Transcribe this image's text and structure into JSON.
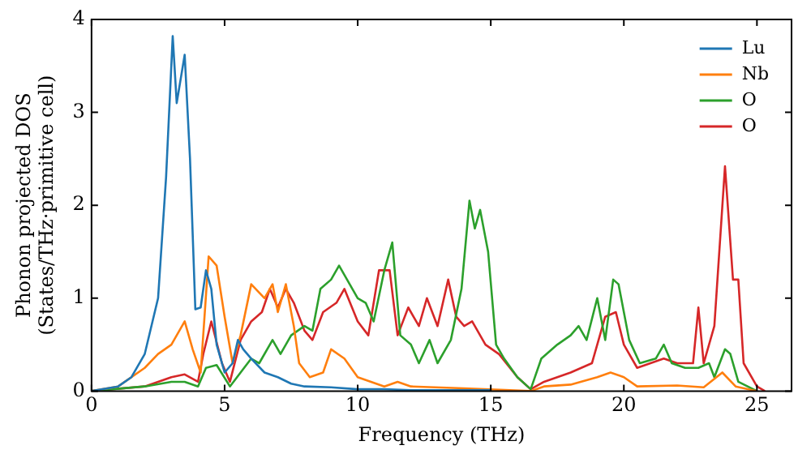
{
  "chart_data": {
    "type": "line",
    "xlabel": "Frequency (THz)",
    "ylabel": "Phonon projected DOS\n(States/THz·primitive cell)",
    "xlim": [
      0,
      26.3
    ],
    "xticks": [
      0,
      5,
      10,
      15,
      20,
      25
    ],
    "ylim": [
      0,
      4
    ],
    "yticks": [
      0,
      1,
      2,
      3,
      4
    ],
    "grid": false,
    "legend": "top right",
    "marker": "none",
    "line_style": "solid",
    "series": [
      {
        "name": "Lu",
        "color": "#1f77b4",
        "x": [
          0,
          1,
          1.5,
          2,
          2.5,
          2.8,
          3.05,
          3.2,
          3.5,
          3.7,
          3.9,
          4.1,
          4.3,
          4.5,
          4.7,
          5.0,
          5.3,
          5.5,
          5.7,
          6,
          6.5,
          7,
          7.5,
          8,
          9,
          10,
          11,
          12,
          13,
          15
        ],
        "values": [
          0,
          0.05,
          0.15,
          0.4,
          1.0,
          2.3,
          3.82,
          3.1,
          3.62,
          2.5,
          0.88,
          0.9,
          1.3,
          1.1,
          0.5,
          0.2,
          0.3,
          0.55,
          0.45,
          0.35,
          0.2,
          0.15,
          0.08,
          0.05,
          0.04,
          0.02,
          0.02,
          0.01,
          0.01,
          0.01
        ]
      },
      {
        "name": "Nb",
        "color": "#ff7f0e",
        "x": [
          0,
          1,
          2,
          2.5,
          3,
          3.5,
          3.8,
          4.1,
          4.4,
          4.7,
          5.0,
          5.3,
          5.6,
          6.0,
          6.5,
          6.8,
          7.0,
          7.3,
          7.6,
          7.8,
          8.2,
          8.7,
          9.0,
          9.5,
          10,
          10.5,
          11,
          11.5,
          12,
          14,
          16.5,
          17,
          18,
          19,
          19.5,
          20,
          20.5,
          22,
          23,
          23.7,
          24.2,
          25
        ],
        "values": [
          0,
          0.05,
          0.25,
          0.4,
          0.5,
          0.75,
          0.45,
          0.2,
          1.45,
          1.35,
          0.8,
          0.3,
          0.6,
          1.15,
          1.0,
          1.15,
          0.85,
          1.15,
          0.7,
          0.3,
          0.15,
          0.2,
          0.45,
          0.35,
          0.15,
          0.1,
          0.05,
          0.1,
          0.05,
          0.03,
          0,
          0.05,
          0.07,
          0.15,
          0.2,
          0.15,
          0.05,
          0.06,
          0.04,
          0.2,
          0.05,
          0
        ]
      },
      {
        "name": "O",
        "color": "#2ca02c",
        "x": [
          0,
          2,
          3,
          3.5,
          4.0,
          4.3,
          4.7,
          5.2,
          5.6,
          6,
          6.3,
          6.8,
          7.1,
          7.5,
          8,
          8.3,
          8.6,
          9,
          9.3,
          9.7,
          10.0,
          10.3,
          10.6,
          11.0,
          11.3,
          11.6,
          12,
          12.3,
          12.7,
          13.0,
          13.5,
          13.9,
          14.2,
          14.4,
          14.6,
          14.9,
          15.2,
          15.5,
          16,
          16.5,
          16.9,
          17.5,
          18,
          18.3,
          18.6,
          19.0,
          19.3,
          19.6,
          19.8,
          20.2,
          20.6,
          21.2,
          21.5,
          21.8,
          22.3,
          22.8,
          23.2,
          23.4,
          23.8,
          24.0,
          24.3,
          25
        ],
        "values": [
          0,
          0.05,
          0.1,
          0.1,
          0.05,
          0.25,
          0.28,
          0.05,
          0.2,
          0.35,
          0.3,
          0.55,
          0.4,
          0.6,
          0.7,
          0.65,
          1.1,
          1.2,
          1.35,
          1.15,
          1.0,
          0.95,
          0.75,
          1.3,
          1.6,
          0.6,
          0.5,
          0.3,
          0.55,
          0.3,
          0.55,
          1.1,
          2.05,
          1.75,
          1.95,
          1.5,
          0.5,
          0.35,
          0.15,
          0.02,
          0.35,
          0.5,
          0.6,
          0.7,
          0.55,
          1.0,
          0.55,
          1.2,
          1.15,
          0.55,
          0.3,
          0.35,
          0.5,
          0.3,
          0.25,
          0.25,
          0.3,
          0.15,
          0.45,
          0.4,
          0.1,
          0
        ]
      },
      {
        "name": "O",
        "color": "#d62728",
        "x": [
          0,
          2,
          3,
          3.5,
          4.0,
          4.2,
          4.5,
          4.9,
          5.2,
          5.6,
          6,
          6.4,
          6.7,
          7.0,
          7.3,
          7.6,
          8,
          8.3,
          8.7,
          9.2,
          9.5,
          10,
          10.4,
          10.8,
          11.2,
          11.5,
          11.9,
          12.3,
          12.6,
          13.0,
          13.4,
          13.7,
          14.0,
          14.3,
          14.8,
          15.3,
          16,
          16.5,
          17,
          18,
          18.8,
          19.3,
          19.7,
          20,
          20.5,
          21,
          21.5,
          22,
          22.6,
          22.8,
          23.0,
          23.4,
          23.8,
          24.1,
          24.3,
          24.5,
          25,
          25.3
        ],
        "values": [
          0,
          0.05,
          0.15,
          0.18,
          0.1,
          0.4,
          0.75,
          0.3,
          0.1,
          0.55,
          0.75,
          0.85,
          1.1,
          0.9,
          1.1,
          0.95,
          0.65,
          0.55,
          0.85,
          0.95,
          1.1,
          0.75,
          0.6,
          1.3,
          1.3,
          0.6,
          0.9,
          0.7,
          1.0,
          0.7,
          1.2,
          0.8,
          0.7,
          0.75,
          0.5,
          0.4,
          0.15,
          0.02,
          0.1,
          0.2,
          0.3,
          0.8,
          0.85,
          0.5,
          0.25,
          0.3,
          0.35,
          0.3,
          0.3,
          0.9,
          0.3,
          0.7,
          2.42,
          1.2,
          1.2,
          0.3,
          0.05,
          0
        ]
      }
    ]
  }
}
